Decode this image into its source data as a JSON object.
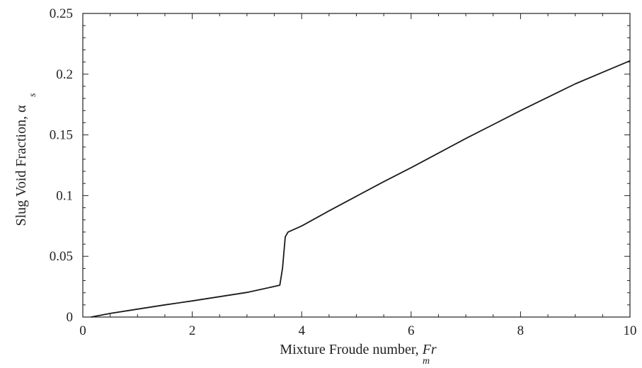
{
  "chart_data": {
    "type": "line",
    "title": "",
    "xlabel": "Mixture Froude number, ",
    "xlabel_symbol": "Fr",
    "xlabel_subscript": "m",
    "ylabel": "Slug Void Fraction, ",
    "ylabel_symbol": "α",
    "ylabel_subscript": "s",
    "xlim": [
      0,
      10
    ],
    "ylim": [
      0,
      0.25
    ],
    "x_ticks": [
      0,
      2,
      4,
      6,
      8,
      10
    ],
    "x_tick_labels": [
      "0",
      "2",
      "4",
      "6",
      "8",
      "10"
    ],
    "y_ticks": [
      0,
      0.05,
      0.1,
      0.15,
      0.2,
      0.25
    ],
    "y_tick_labels": [
      "0",
      "0.05",
      "0.1",
      "0.15",
      "0.2",
      "0.25"
    ],
    "grid": false,
    "series": [
      {
        "values_xy": [
          [
            0.15,
            0.0
          ],
          [
            0.5,
            0.003
          ],
          [
            1.0,
            0.0065
          ],
          [
            1.5,
            0.01
          ],
          [
            2.0,
            0.0133
          ],
          [
            2.5,
            0.0168
          ],
          [
            3.0,
            0.0203
          ],
          [
            3.5,
            0.0252
          ],
          [
            3.6,
            0.0262
          ],
          [
            3.65,
            0.04
          ],
          [
            3.7,
            0.066
          ],
          [
            3.75,
            0.07
          ],
          [
            4.0,
            0.075
          ],
          [
            4.5,
            0.0875
          ],
          [
            5.0,
            0.0995
          ],
          [
            5.5,
            0.1115
          ],
          [
            6.0,
            0.123
          ],
          [
            6.5,
            0.135
          ],
          [
            7.0,
            0.147
          ],
          [
            7.5,
            0.1585
          ],
          [
            8.0,
            0.17
          ],
          [
            8.5,
            0.181
          ],
          [
            9.0,
            0.192
          ],
          [
            9.5,
            0.2015
          ],
          [
            10.0,
            0.211
          ]
        ]
      }
    ]
  }
}
